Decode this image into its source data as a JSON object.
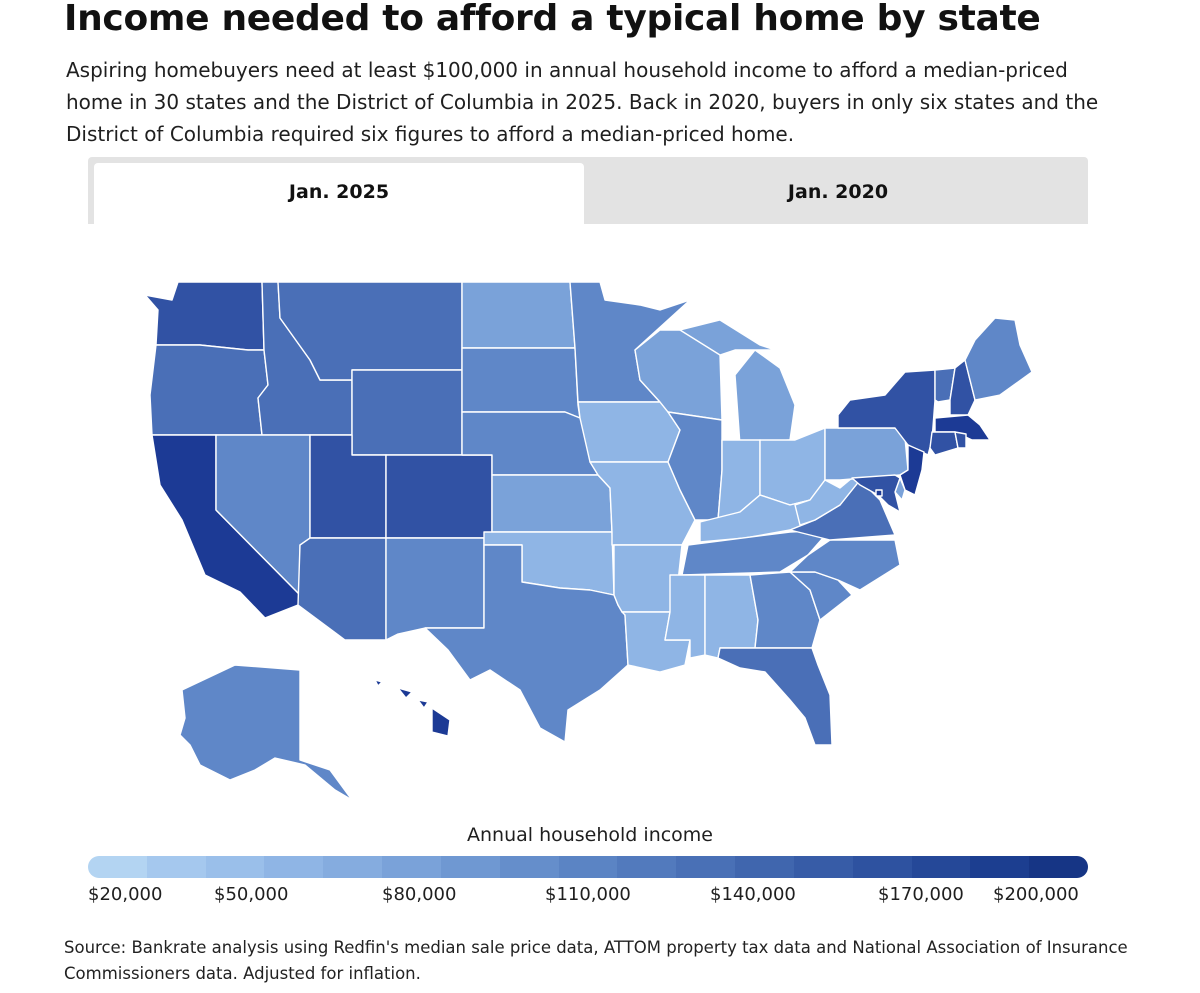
{
  "title": "Income needed to afford a typical home by state",
  "subtitle": "Aspiring homebuyers need at least $100,000 in annual household income to afford a median-priced home in 30 states and the District of Columbia in 2025. Back in 2020, buyers in only six states and the District of Columbia required six figures to afford a median-priced home.",
  "tabs": [
    {
      "label": "Jan. 2025",
      "active": true
    },
    {
      "label": "Jan. 2020",
      "active": false
    }
  ],
  "legend": {
    "title": "Annual household income",
    "ticks": [
      "$20,000",
      "$50,000",
      "$80,000",
      "$110,000",
      "$140,000",
      "$170,000",
      "$200,000"
    ],
    "colors": [
      "#b3d4f2",
      "#a5c8ee",
      "#9abfea",
      "#8fb5e5",
      "#85acdf",
      "#7aa2d9",
      "#6f98d2",
      "#658ecb",
      "#5b84c4",
      "#527abd",
      "#4970b6",
      "#4066ae",
      "#375ca7",
      "#2e52a0",
      "#254898",
      "#1c3e90",
      "#163585"
    ]
  },
  "source": "Source: Bankrate analysis using Redfin's median sale price data, ATTOM property tax data and National Association of Insurance Commissioners data. Adjusted for inflation.",
  "map_data": {
    "year": "Jan. 2025",
    "colors": {
      "light": "#8fb5e5",
      "midlight": "#7aa2d9",
      "mid": "#5f87c8",
      "middark": "#4a6fb7",
      "dark": "#3152a4",
      "darkest": "#1c3a95"
    },
    "states": [
      {
        "abbr": "WA",
        "level": "dark"
      },
      {
        "abbr": "OR",
        "level": "middark"
      },
      {
        "abbr": "CA",
        "level": "darkest"
      },
      {
        "abbr": "ID",
        "level": "middark"
      },
      {
        "abbr": "NV",
        "level": "mid"
      },
      {
        "abbr": "MT",
        "level": "middark"
      },
      {
        "abbr": "WY",
        "level": "middark"
      },
      {
        "abbr": "UT",
        "level": "dark"
      },
      {
        "abbr": "AZ",
        "level": "middark"
      },
      {
        "abbr": "CO",
        "level": "dark"
      },
      {
        "abbr": "NM",
        "level": "mid"
      },
      {
        "abbr": "ND",
        "level": "midlight"
      },
      {
        "abbr": "SD",
        "level": "mid"
      },
      {
        "abbr": "NE",
        "level": "mid"
      },
      {
        "abbr": "KS",
        "level": "midlight"
      },
      {
        "abbr": "OK",
        "level": "light"
      },
      {
        "abbr": "TX",
        "level": "mid"
      },
      {
        "abbr": "MN",
        "level": "mid"
      },
      {
        "abbr": "IA",
        "level": "light"
      },
      {
        "abbr": "MO",
        "level": "light"
      },
      {
        "abbr": "AR",
        "level": "light"
      },
      {
        "abbr": "LA",
        "level": "light"
      },
      {
        "abbr": "WI",
        "level": "midlight"
      },
      {
        "abbr": "IL",
        "level": "mid"
      },
      {
        "abbr": "MI",
        "level": "midlight"
      },
      {
        "abbr": "IN",
        "level": "light"
      },
      {
        "abbr": "OH",
        "level": "light"
      },
      {
        "abbr": "KY",
        "level": "light"
      },
      {
        "abbr": "TN",
        "level": "mid"
      },
      {
        "abbr": "MS",
        "level": "light"
      },
      {
        "abbr": "AL",
        "level": "light"
      },
      {
        "abbr": "GA",
        "level": "mid"
      },
      {
        "abbr": "FL",
        "level": "middark"
      },
      {
        "abbr": "SC",
        "level": "mid"
      },
      {
        "abbr": "NC",
        "level": "mid"
      },
      {
        "abbr": "VA",
        "level": "middark"
      },
      {
        "abbr": "WV",
        "level": "light"
      },
      {
        "abbr": "PA",
        "level": "midlight"
      },
      {
        "abbr": "NY",
        "level": "dark"
      },
      {
        "abbr": "VT",
        "level": "middark"
      },
      {
        "abbr": "NH",
        "level": "dark"
      },
      {
        "abbr": "ME",
        "level": "mid"
      },
      {
        "abbr": "MA",
        "level": "darkest"
      },
      {
        "abbr": "CT",
        "level": "dark"
      },
      {
        "abbr": "RI",
        "level": "dark"
      },
      {
        "abbr": "NJ",
        "level": "darkest"
      },
      {
        "abbr": "DE",
        "level": "midlight"
      },
      {
        "abbr": "MD",
        "level": "dark"
      },
      {
        "abbr": "DC",
        "level": "darkest"
      },
      {
        "abbr": "AK",
        "level": "mid"
      },
      {
        "abbr": "HI",
        "level": "darkest"
      }
    ]
  }
}
